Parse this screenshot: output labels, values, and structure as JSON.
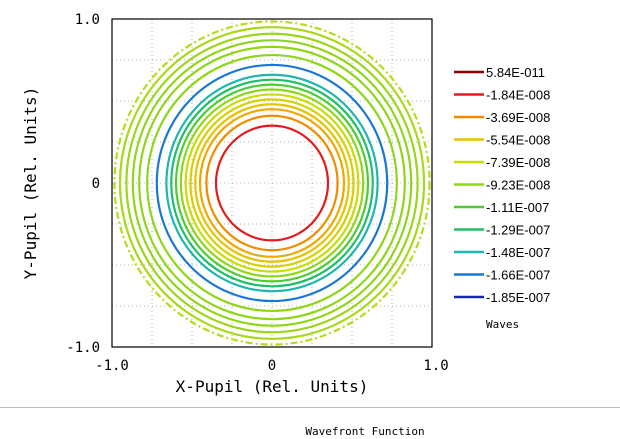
{
  "chart_data": {
    "type": "contour",
    "title": "Wavefront Function",
    "xlabel": "X-Pupil (Rel. Units)",
    "ylabel": "Y-Pupil (Rel. Units)",
    "xlim": [
      -1.0,
      1.0
    ],
    "ylim": [
      -1.0,
      1.0
    ],
    "x_ticks": [
      "-1.0",
      "0",
      "1.0"
    ],
    "y_ticks": [
      "1.0",
      "0",
      "-1.0"
    ],
    "grid": true,
    "legend_position": "right",
    "legend_unit": "Waves",
    "legend": [
      {
        "label": "5.84E-011",
        "color": "#8b0000"
      },
      {
        "label": "-1.84E-008",
        "color": "#e31b1b"
      },
      {
        "label": "-3.69E-008",
        "color": "#f08c00"
      },
      {
        "label": "-5.54E-008",
        "color": "#e6c200"
      },
      {
        "label": "-7.39E-008",
        "color": "#c8dc00"
      },
      {
        "label": "-9.23E-008",
        "color": "#8fd61a"
      },
      {
        "label": "-1.11E-007",
        "color": "#4ccc32"
      },
      {
        "label": "-1.29E-007",
        "color": "#1fbf6a"
      },
      {
        "label": "-1.48E-007",
        "color": "#1fb5b0"
      },
      {
        "label": "-1.66E-007",
        "color": "#1a78d2"
      },
      {
        "label": "-1.85E-007",
        "color": "#1a2aa8"
      }
    ],
    "contours": [
      {
        "radius": 0.35,
        "color": "#e31b1b",
        "dash": false
      },
      {
        "radius": 0.41,
        "color": "#f08c00",
        "dash": false
      },
      {
        "radius": 0.45,
        "color": "#f0a800",
        "dash": false
      },
      {
        "radius": 0.48,
        "color": "#e6c200",
        "dash": false
      },
      {
        "radius": 0.51,
        "color": "#d6d000",
        "dash": false
      },
      {
        "radius": 0.54,
        "color": "#c8dc00",
        "dash": false
      },
      {
        "radius": 0.57,
        "color": "#8fd61a",
        "dash": false
      },
      {
        "radius": 0.6,
        "color": "#4ccc32",
        "dash": false
      },
      {
        "radius": 0.63,
        "color": "#1fbf6a",
        "dash": false
      },
      {
        "radius": 0.66,
        "color": "#1fb5b0",
        "dash": false
      },
      {
        "radius": 0.72,
        "color": "#1a78d2",
        "dash": false
      },
      {
        "radius": 0.78,
        "color": "#8fd61a",
        "dash": false
      },
      {
        "radius": 0.83,
        "color": "#8fd61a",
        "dash": false
      },
      {
        "radius": 0.87,
        "color": "#8fd61a",
        "dash": false
      },
      {
        "radius": 0.91,
        "color": "#9ad61a",
        "dash": false
      },
      {
        "radius": 0.95,
        "color": "#a8d81a",
        "dash": false
      },
      {
        "radius": 0.985,
        "color": "#b4dc1a",
        "dash": true
      }
    ]
  }
}
